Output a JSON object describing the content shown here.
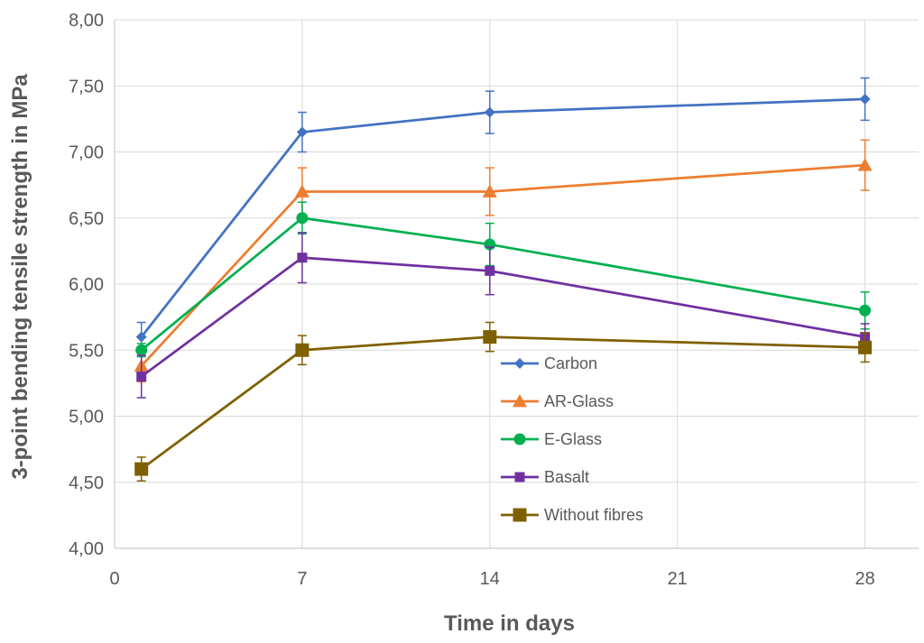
{
  "chart_data": {
    "type": "line",
    "title": "",
    "xlabel": "Time in days",
    "ylabel": "3-point bending tensile strength in MPa",
    "xlim": [
      0,
      30
    ],
    "ylim": [
      4.0,
      8.0
    ],
    "x_ticks": [
      0,
      7,
      14,
      21,
      28
    ],
    "x_tick_labels": [
      "0",
      "7",
      "14",
      "21",
      "28"
    ],
    "y_ticks": [
      4.0,
      4.5,
      5.0,
      5.5,
      6.0,
      6.5,
      7.0,
      7.5,
      8.0
    ],
    "y_tick_labels": [
      "4,00",
      "4,50",
      "5,00",
      "5,50",
      "6,00",
      "6,50",
      "7,00",
      "7,50",
      "8,00"
    ],
    "grid": true,
    "legend_position": "center-right",
    "x": [
      1,
      7,
      14,
      28
    ],
    "series": [
      {
        "name": "Carbon",
        "color": "#4472C4",
        "marker": "diamond",
        "values": [
          5.6,
          7.15,
          7.3,
          7.4
        ],
        "errors": [
          0.11,
          0.15,
          0.16,
          0.16
        ]
      },
      {
        "name": "AR-Glass",
        "color": "#ED7D31",
        "marker": "triangle",
        "values": [
          5.38,
          6.7,
          6.7,
          6.9
        ],
        "errors": [
          0.12,
          0.18,
          0.18,
          0.19
        ]
      },
      {
        "name": "E-Glass",
        "color": "#00B050",
        "marker": "circle",
        "values": [
          5.5,
          6.5,
          6.3,
          5.8
        ],
        "errors": [
          0.05,
          0.12,
          0.16,
          0.14
        ]
      },
      {
        "name": "Basalt",
        "color": "#7030A0",
        "marker": "square",
        "values": [
          5.3,
          6.2,
          6.1,
          5.6
        ],
        "errors": [
          0.16,
          0.19,
          0.18,
          0.1
        ]
      },
      {
        "name": "Without fibres",
        "color": "#7F6000",
        "marker": "square-large",
        "values": [
          4.6,
          5.5,
          5.6,
          5.52
        ],
        "errors": [
          0.09,
          0.11,
          0.11,
          0.11
        ]
      }
    ]
  }
}
